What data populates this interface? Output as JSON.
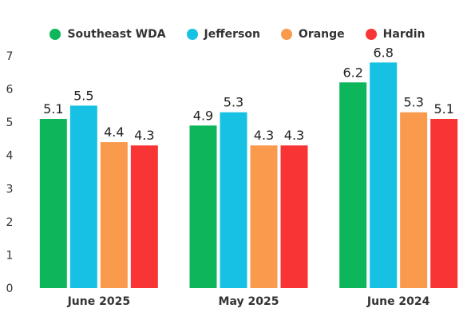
{
  "chart_data": {
    "type": "bar",
    "categories": [
      "June 2025",
      "May 2025",
      "June 2024"
    ],
    "series": [
      {
        "name": "Southeast WDA",
        "color": "#0db65a",
        "values": [
          5.1,
          4.9,
          6.2
        ]
      },
      {
        "name": "Jefferson",
        "color": "#16c1e3",
        "values": [
          5.5,
          5.3,
          6.8
        ]
      },
      {
        "name": "Orange",
        "color": "#fa9a4d",
        "values": [
          4.4,
          4.3,
          5.3
        ]
      },
      {
        "name": "Hardin",
        "color": "#f83434",
        "values": [
          4.3,
          4.3,
          5.1
        ]
      }
    ],
    "yticks": [
      "0",
      "1",
      "2",
      "3",
      "4",
      "5",
      "6",
      "7"
    ],
    "ylim": [
      0,
      7
    ],
    "grid": false,
    "legend_position": "top-center",
    "data_labels": true
  }
}
